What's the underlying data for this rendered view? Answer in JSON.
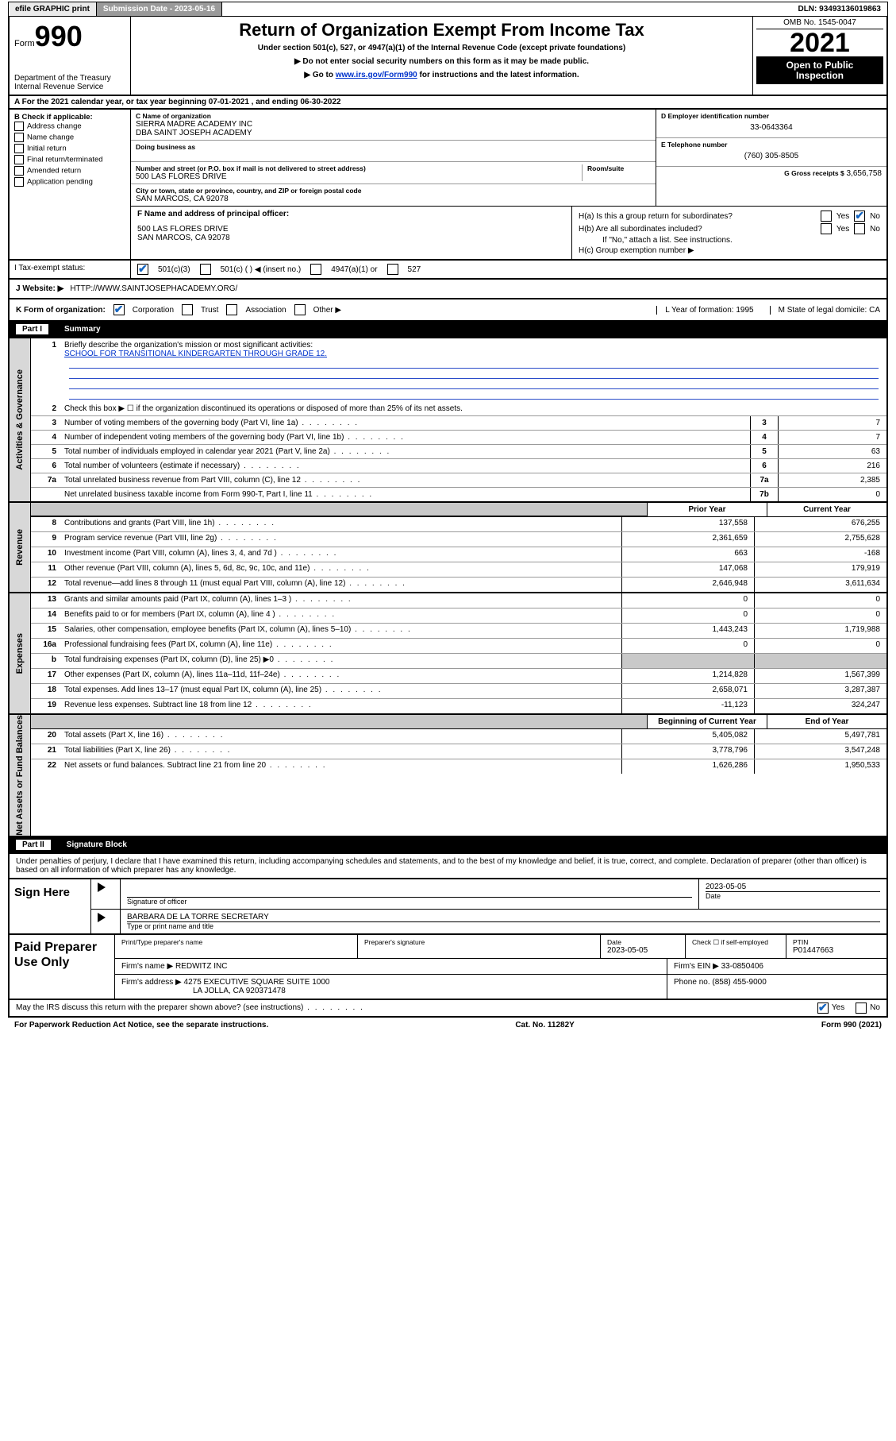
{
  "topbar": {
    "efile": "efile GRAPHIC print",
    "submission": "Submission Date - 2023-05-16",
    "dln": "DLN: 93493136019863"
  },
  "header": {
    "form_word": "Form",
    "form_num": "990",
    "dept": "Department of the Treasury",
    "irs": "Internal Revenue Service",
    "title": "Return of Organization Exempt From Income Tax",
    "sub1": "Under section 501(c), 527, or 4947(a)(1) of the Internal Revenue Code (except private foundations)",
    "sub2": "▶ Do not enter social security numbers on this form as it may be made public.",
    "sub3_pre": "▶ Go to ",
    "sub3_link": "www.irs.gov/Form990",
    "sub3_post": " for instructions and the latest information.",
    "omb": "OMB No. 1545-0047",
    "year": "2021",
    "open1": "Open to Public",
    "open2": "Inspection"
  },
  "row_a": "A For the 2021 calendar year, or tax year beginning 07-01-2021   , and ending 06-30-2022",
  "col_b": {
    "head": "B Check if applicable:",
    "items": [
      "Address change",
      "Name change",
      "Initial return",
      "Final return/terminated",
      "Amended return",
      "Application pending"
    ]
  },
  "col_c": {
    "c_label": "C Name of organization",
    "org1": "SIERRA MADRE ACADEMY INC",
    "org2": "DBA SAINT JOSEPH ACADEMY",
    "dba_label": "Doing business as",
    "addr_label": "Number and street (or P.O. box if mail is not delivered to street address)",
    "room": "Room/suite",
    "street": "500 LAS FLORES DRIVE",
    "city_label": "City or town, state or province, country, and ZIP or foreign postal code",
    "city": "SAN MARCOS, CA  92078"
  },
  "col_d": {
    "d_label": "D Employer identification number",
    "ein": "33-0643364",
    "e_label": "E Telephone number",
    "phone": "(760) 305-8505",
    "g_label": "G Gross receipts $",
    "gross": "3,656,758"
  },
  "f": {
    "label": "F Name and address of principal officer:",
    "line1": "500 LAS FLORES DRIVE",
    "line2": "SAN MARCOS, CA  92078"
  },
  "h": {
    "ha": "H(a)  Is this a group return for subordinates?",
    "yes": "Yes",
    "no": "No",
    "hb": "H(b)  Are all subordinates included?",
    "hb_note": "If \"No,\" attach a list. See instructions.",
    "hc": "H(c)  Group exemption number ▶"
  },
  "i": {
    "label": "I  Tax-exempt status:",
    "o1": "501(c)(3)",
    "o2": "501(c) (  ) ◀ (insert no.)",
    "o3": "4947(a)(1) or",
    "o4": "527"
  },
  "j": {
    "label": "J   Website: ▶",
    "url": "HTTP://WWW.SAINTJOSEPHACADEMY.ORG/"
  },
  "k": {
    "label": "K Form of organization:",
    "opts": [
      "Corporation",
      "Trust",
      "Association",
      "Other ▶"
    ],
    "l": "L Year of formation: 1995",
    "m": "M State of legal domicile: CA"
  },
  "parts": {
    "p1": "Part I",
    "p1t": "Summary",
    "p2": "Part II",
    "p2t": "Signature Block"
  },
  "summary": {
    "tab1": "Activities & Governance",
    "l1_pre": "Briefly describe the organization's mission or most significant activities:",
    "l1_text": "SCHOOL FOR TRANSITIONAL KINDERGARTEN THROUGH GRADE 12.",
    "l2": "Check this box ▶ ☐  if the organization discontinued its operations or disposed of more than 25% of its net assets.",
    "rows": [
      {
        "n": "3",
        "t": "Number of voting members of the governing body (Part VI, line 1a)",
        "b": "3",
        "v": "7"
      },
      {
        "n": "4",
        "t": "Number of independent voting members of the governing body (Part VI, line 1b)",
        "b": "4",
        "v": "7"
      },
      {
        "n": "5",
        "t": "Total number of individuals employed in calendar year 2021 (Part V, line 2a)",
        "b": "5",
        "v": "63"
      },
      {
        "n": "6",
        "t": "Total number of volunteers (estimate if necessary)",
        "b": "6",
        "v": "216"
      },
      {
        "n": "7a",
        "t": "Total unrelated business revenue from Part VIII, column (C), line 12",
        "b": "7a",
        "v": "2,385"
      },
      {
        "n": "",
        "t": "Net unrelated business taxable income from Form 990-T, Part I, line 11",
        "b": "7b",
        "v": "0"
      }
    ]
  },
  "fin_headers": {
    "prior": "Prior Year",
    "current": "Current Year",
    "begin": "Beginning of Current Year",
    "end": "End of Year"
  },
  "revenue": {
    "tab": "Revenue",
    "rows": [
      {
        "n": "8",
        "t": "Contributions and grants (Part VIII, line 1h)",
        "p": "137,558",
        "c": "676,255"
      },
      {
        "n": "9",
        "t": "Program service revenue (Part VIII, line 2g)",
        "p": "2,361,659",
        "c": "2,755,628"
      },
      {
        "n": "10",
        "t": "Investment income (Part VIII, column (A), lines 3, 4, and 7d )",
        "p": "663",
        "c": "-168"
      },
      {
        "n": "11",
        "t": "Other revenue (Part VIII, column (A), lines 5, 6d, 8c, 9c, 10c, and 11e)",
        "p": "147,068",
        "c": "179,919"
      },
      {
        "n": "12",
        "t": "Total revenue—add lines 8 through 11 (must equal Part VIII, column (A), line 12)",
        "p": "2,646,948",
        "c": "3,611,634"
      }
    ]
  },
  "expenses": {
    "tab": "Expenses",
    "rows": [
      {
        "n": "13",
        "t": "Grants and similar amounts paid (Part IX, column (A), lines 1–3 )",
        "p": "0",
        "c": "0"
      },
      {
        "n": "14",
        "t": "Benefits paid to or for members (Part IX, column (A), line 4 )",
        "p": "0",
        "c": "0"
      },
      {
        "n": "15",
        "t": "Salaries, other compensation, employee benefits (Part IX, column (A), lines 5–10)",
        "p": "1,443,243",
        "c": "1,719,988"
      },
      {
        "n": "16a",
        "t": "Professional fundraising fees (Part IX, column (A), line 11e)",
        "p": "0",
        "c": "0"
      },
      {
        "n": "b",
        "t": "Total fundraising expenses (Part IX, column (D), line 25) ▶0",
        "p": "",
        "c": "",
        "shade": true
      },
      {
        "n": "17",
        "t": "Other expenses (Part IX, column (A), lines 11a–11d, 11f–24e)",
        "p": "1,214,828",
        "c": "1,567,399"
      },
      {
        "n": "18",
        "t": "Total expenses. Add lines 13–17 (must equal Part IX, column (A), line 25)",
        "p": "2,658,071",
        "c": "3,287,387"
      },
      {
        "n": "19",
        "t": "Revenue less expenses. Subtract line 18 from line 12",
        "p": "-11,123",
        "c": "324,247"
      }
    ]
  },
  "netassets": {
    "tab": "Net Assets or Fund Balances",
    "rows": [
      {
        "n": "20",
        "t": "Total assets (Part X, line 16)",
        "p": "5,405,082",
        "c": "5,497,781"
      },
      {
        "n": "21",
        "t": "Total liabilities (Part X, line 26)",
        "p": "3,778,796",
        "c": "3,547,248"
      },
      {
        "n": "22",
        "t": "Net assets or fund balances. Subtract line 21 from line 20",
        "p": "1,626,286",
        "c": "1,950,533"
      }
    ]
  },
  "sig": {
    "decl": "Under penalties of perjury, I declare that I have examined this return, including accompanying schedules and statements, and to the best of my knowledge and belief, it is true, correct, and complete. Declaration of preparer (other than officer) is based on all information of which preparer has any knowledge.",
    "sign_here": "Sign Here",
    "sig_officer": "Signature of officer",
    "date_label": "Date",
    "date": "2023-05-05",
    "name": "BARBARA DE LA TORRE  SECRETARY",
    "name_label": "Type or print name and title"
  },
  "prep": {
    "label": "Paid Preparer Use Only",
    "h1": "Print/Type preparer's name",
    "h2": "Preparer's signature",
    "h3": "Date",
    "h4": "Check ☐ if self-employed",
    "h5": "PTIN",
    "date": "2023-05-05",
    "ptin": "P01447663",
    "firm_l": "Firm's name   ▶",
    "firm": "REDWITZ INC",
    "ein_l": "Firm's EIN ▶",
    "ein": "33-0850406",
    "addr_l": "Firm's address ▶",
    "addr1": "4275 EXECUTIVE SQUARE SUITE 1000",
    "addr2": "LA JOLLA, CA  920371478",
    "phone_l": "Phone no.",
    "phone": "(858) 455-9000"
  },
  "footer": {
    "q": "May the IRS discuss this return with the preparer shown above? (see instructions)",
    "yes": "Yes",
    "no": "No",
    "pra": "For Paperwork Reduction Act Notice, see the separate instructions.",
    "cat": "Cat. No. 11282Y",
    "form": "Form 990 (2021)"
  }
}
